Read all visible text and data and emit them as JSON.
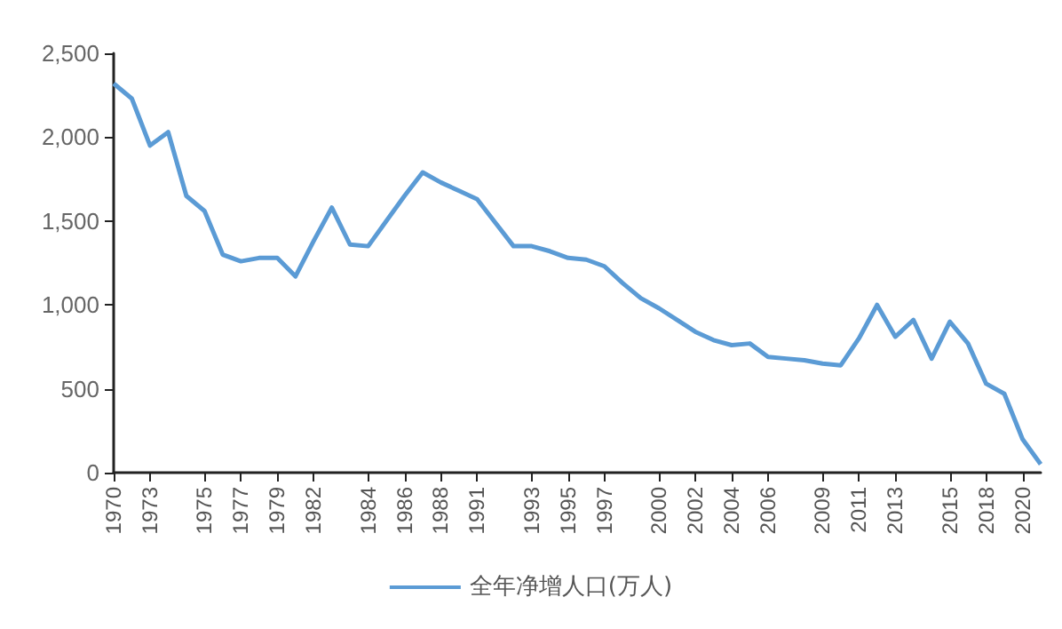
{
  "chart_data": {
    "type": "line",
    "categories": [
      "1970",
      null,
      "1973",
      null,
      null,
      "1975",
      null,
      "1977",
      null,
      "1979",
      null,
      "1982",
      null,
      null,
      "1984",
      null,
      "1986",
      null,
      "1988",
      null,
      "1991",
      null,
      null,
      "1993",
      null,
      "1995",
      null,
      "1997",
      null,
      null,
      "2000",
      null,
      "2002",
      null,
      "2004",
      null,
      "2006",
      null,
      null,
      "2009",
      null,
      "2011",
      null,
      "2013",
      null,
      null,
      "2015",
      null,
      "2018",
      null,
      "2020",
      null
    ],
    "series": [
      {
        "name": "全年净增人口(万人)",
        "color": "#5b9bd5",
        "values": [
          2320,
          2230,
          1950,
          2030,
          1650,
          1560,
          1300,
          1260,
          1280,
          1280,
          1170,
          1380,
          1580,
          1360,
          1350,
          1500,
          1650,
          1790,
          1730,
          1680,
          1630,
          1490,
          1350,
          1350,
          1320,
          1280,
          1270,
          1230,
          1130,
          1040,
          980,
          910,
          840,
          790,
          760,
          770,
          690,
          680,
          670,
          650,
          640,
          800,
          1000,
          810,
          910,
          680,
          900,
          770,
          530,
          470,
          200,
          50
        ]
      }
    ],
    "ylim": [
      0,
      2500
    ],
    "yticks": [
      0,
      500,
      {
        "value": 1000,
        "label": "1,000"
      },
      {
        "value": 1500,
        "label": "1,500"
      },
      {
        "value": 2000,
        "label": "2,000"
      },
      {
        "value": 2500,
        "label": "2,500"
      }
    ],
    "grid": false,
    "legend": "bottom",
    "marker": "none",
    "line_style": "solid"
  }
}
